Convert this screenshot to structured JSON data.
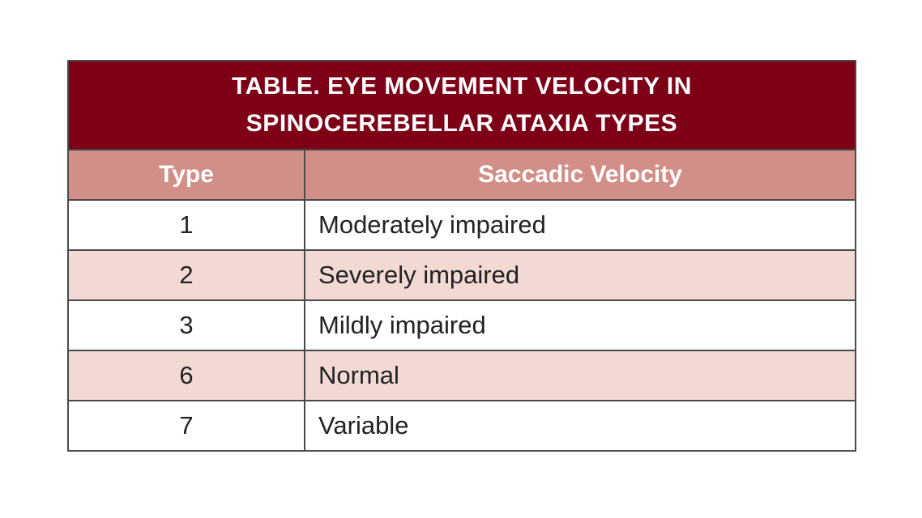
{
  "table": {
    "title_line1": "TABLE. EYE MOVEMENT VELOCITY IN",
    "title_line2": "SPINOCEREBELLAR ATAXIA TYPES",
    "headers": [
      "Type",
      "Saccadic Velocity"
    ],
    "rows": [
      [
        "1",
        "Moderately impaired"
      ],
      [
        "2",
        "Severely impaired"
      ],
      [
        "3",
        "Mildly impaired"
      ],
      [
        "6",
        "Normal"
      ],
      [
        "7",
        "Variable"
      ]
    ],
    "colors": {
      "title_bg": "#7d0016",
      "header_bg": "#d28f87",
      "stripe_bg": "#f2d9d3"
    }
  }
}
